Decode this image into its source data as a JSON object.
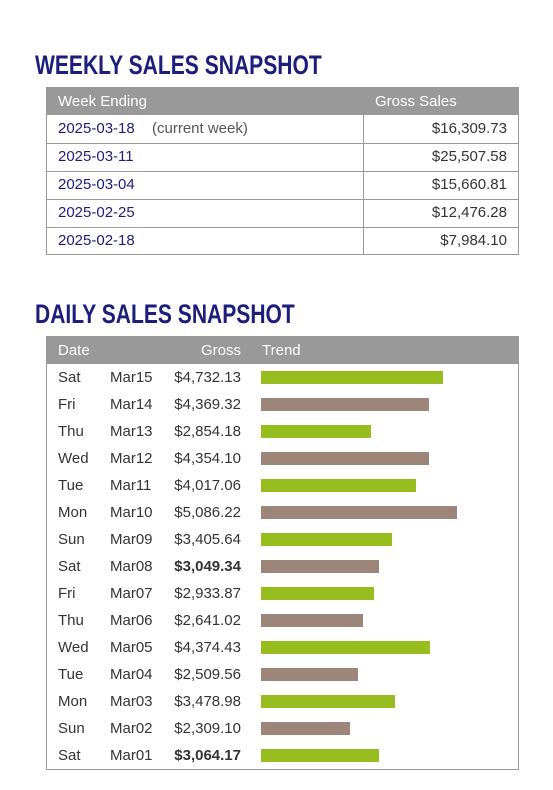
{
  "weekly": {
    "title": "WEEKLY SALES SNAPSHOT",
    "columns": [
      "Week Ending",
      "Gross Sales"
    ],
    "rows": [
      {
        "week": "2025-03-18",
        "note": "(current week)",
        "gross": "$16,309.73"
      },
      {
        "week": "2025-03-11",
        "gross": "$25,507.58"
      },
      {
        "week": "2025-03-04",
        "gross": "$15,660.81"
      },
      {
        "week": "2025-02-25",
        "gross": "$12,476.28"
      },
      {
        "week": "2025-02-18",
        "gross": "$7,984.10"
      }
    ]
  },
  "daily": {
    "title": "DAILY SALES SNAPSHOT",
    "columns": [
      "Date",
      "Gross",
      "Trend"
    ],
    "bar_colors": [
      "#97bd1e",
      "#9c8579"
    ],
    "bold_rows": [
      7,
      14
    ],
    "rows": [
      {
        "day": "Sat",
        "date": "Mar15",
        "gross": 4732.13,
        "gross_label": "$4,732.13"
      },
      {
        "day": "Fri",
        "date": "Mar14",
        "gross": 4369.32,
        "gross_label": "$4,369.32"
      },
      {
        "day": "Thu",
        "date": "Mar13",
        "gross": 2854.18,
        "gross_label": "$2,854.18"
      },
      {
        "day": "Wed",
        "date": "Mar12",
        "gross": 4354.1,
        "gross_label": "$4,354.10"
      },
      {
        "day": "Tue",
        "date": "Mar11",
        "gross": 4017.06,
        "gross_label": "$4,017.06"
      },
      {
        "day": "Mon",
        "date": "Mar10",
        "gross": 5086.22,
        "gross_label": "$5,086.22"
      },
      {
        "day": "Sun",
        "date": "Mar09",
        "gross": 3405.64,
        "gross_label": "$3,405.64"
      },
      {
        "day": "Sat",
        "date": "Mar08",
        "gross": 3049.34,
        "gross_label": "$3,049.34"
      },
      {
        "day": "Fri",
        "date": "Mar07",
        "gross": 2933.87,
        "gross_label": "$2,933.87"
      },
      {
        "day": "Thu",
        "date": "Mar06",
        "gross": 2641.02,
        "gross_label": "$2,641.02"
      },
      {
        "day": "Wed",
        "date": "Mar05",
        "gross": 4374.43,
        "gross_label": "$4,374.43"
      },
      {
        "day": "Tue",
        "date": "Mar04",
        "gross": 2509.56,
        "gross_label": "$2,509.56"
      },
      {
        "day": "Mon",
        "date": "Mar03",
        "gross": 3478.98,
        "gross_label": "$3,478.98"
      },
      {
        "day": "Sun",
        "date": "Mar02",
        "gross": 2309.1,
        "gross_label": "$2,309.10"
      },
      {
        "day": "Sat",
        "date": "Mar01",
        "gross": 3064.17,
        "gross_label": "$3,064.17"
      }
    ]
  }
}
